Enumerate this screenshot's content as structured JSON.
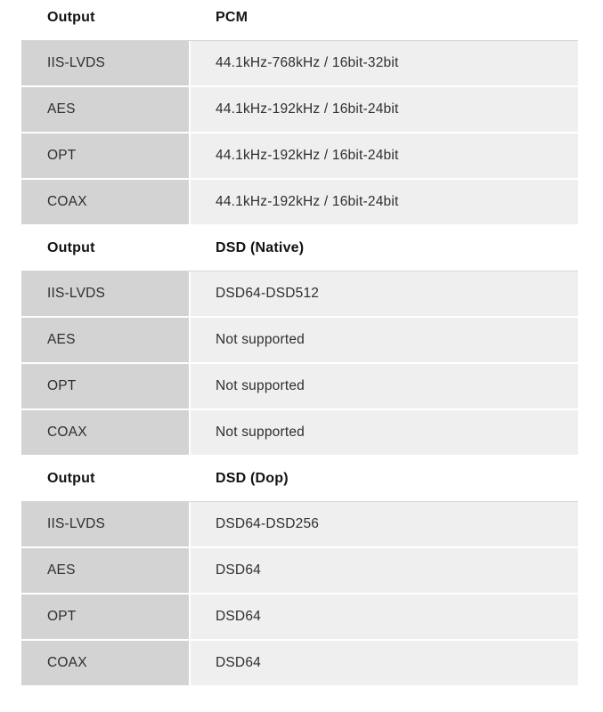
{
  "colors": {
    "page_bg": "#ffffff",
    "col1_bg": "#d3d3d3",
    "col2_bg": "#efefef",
    "hairline": "#d8d8d8",
    "header_text": "#121212",
    "body_text": "#2e2e2e",
    "gutter": "#ffffff"
  },
  "tables": [
    {
      "header": {
        "col1": "Output",
        "col2": "PCM"
      },
      "rows": [
        {
          "output": "IIS-LVDS",
          "value": "44.1kHz-768kHz / 16bit-32bit"
        },
        {
          "output": "AES",
          "value": "44.1kHz-192kHz / 16bit-24bit"
        },
        {
          "output": "OPT",
          "value": "44.1kHz-192kHz / 16bit-24bit"
        },
        {
          "output": "COAX",
          "value": "44.1kHz-192kHz / 16bit-24bit"
        }
      ]
    },
    {
      "header": {
        "col1": "Output",
        "col2": "DSD (Native)"
      },
      "rows": [
        {
          "output": "IIS-LVDS",
          "value": "DSD64-DSD512"
        },
        {
          "output": "AES",
          "value": "Not supported"
        },
        {
          "output": "OPT",
          "value": "Not supported"
        },
        {
          "output": "COAX",
          "value": "Not supported"
        }
      ]
    },
    {
      "header": {
        "col1": "Output",
        "col2": "DSD (Dop)"
      },
      "rows": [
        {
          "output": "IIS-LVDS",
          "value": "DSD64-DSD256"
        },
        {
          "output": "AES",
          "value": "DSD64"
        },
        {
          "output": "OPT",
          "value": "DSD64"
        },
        {
          "output": "COAX",
          "value": "DSD64"
        }
      ]
    }
  ]
}
